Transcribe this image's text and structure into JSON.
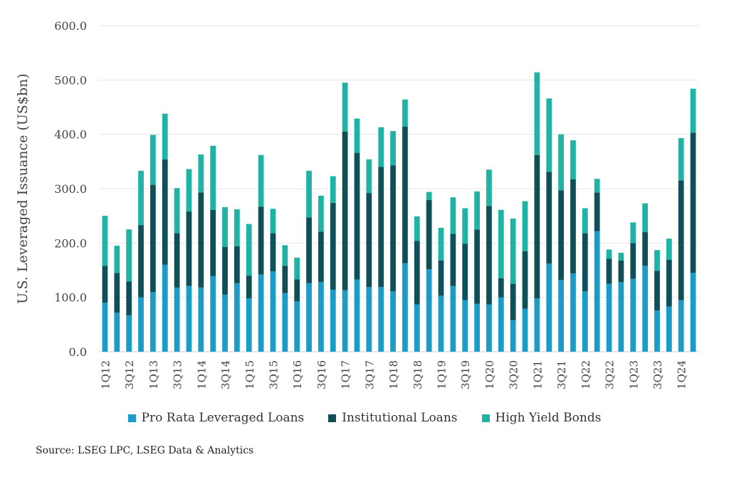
{
  "chart_data": {
    "type": "bar",
    "stacked": true,
    "ylabel": "U.S. Leveraged Issuance (US$bn)",
    "ylim": [
      0,
      600
    ],
    "yticks": [
      "0.0",
      "100.0",
      "200.0",
      "300.0",
      "400.0",
      "500.0",
      "600.0"
    ],
    "grid": true,
    "legend_position": "bottom",
    "categories": [
      "1Q12",
      "2Q12",
      "3Q12",
      "4Q12",
      "1Q13",
      "2Q13",
      "3Q13",
      "4Q13",
      "1Q14",
      "2Q14",
      "3Q14",
      "4Q14",
      "1Q15",
      "2Q15",
      "3Q15",
      "4Q15",
      "1Q16",
      "2Q16",
      "3Q16",
      "4Q16",
      "1Q17",
      "2Q17",
      "3Q17",
      "4Q17",
      "1Q18",
      "2Q18",
      "3Q18",
      "4Q18",
      "1Q19",
      "2Q19",
      "3Q19",
      "4Q19",
      "1Q20",
      "2Q20",
      "3Q20",
      "4Q20",
      "1Q21",
      "2Q21",
      "3Q21",
      "4Q21",
      "1Q22",
      "2Q22",
      "3Q22",
      "4Q22",
      "1Q23",
      "2Q23",
      "3Q23",
      "4Q23",
      "1Q24",
      "2Q24"
    ],
    "visible_tick_labels": [
      "1Q12",
      "3Q12",
      "1Q13",
      "3Q13",
      "1Q14",
      "3Q14",
      "1Q15",
      "3Q15",
      "1Q16",
      "3Q16",
      "1Q17",
      "3Q17",
      "1Q18",
      "3Q18",
      "1Q19",
      "3Q19",
      "1Q20",
      "3Q20",
      "1Q21",
      "3Q21",
      "1Q22",
      "3Q22",
      "1Q23",
      "3Q23",
      "1Q24"
    ],
    "series": [
      {
        "name": "Pro Rata Leveraged Loans",
        "color": "#1a9bc8",
        "values": [
          90,
          72,
          67,
          100,
          110,
          160,
          118,
          121,
          118,
          139,
          105,
          126,
          98,
          142,
          148,
          108,
          93,
          126,
          128,
          114,
          113,
          133,
          119,
          119,
          111,
          163,
          87,
          152,
          103,
          121,
          95,
          88,
          87,
          100,
          58,
          79,
          98,
          162,
          132,
          144,
          111,
          222,
          125,
          128,
          134,
          158,
          76,
          83,
          95,
          145
        ]
      },
      {
        "name": "Institutional Loans",
        "color": "#0f4f57",
        "values": [
          68,
          73,
          62,
          133,
          197,
          194,
          100,
          137,
          175,
          122,
          88,
          68,
          42,
          125,
          70,
          50,
          40,
          121,
          93,
          160,
          292,
          233,
          173,
          221,
          232,
          251,
          117,
          127,
          65,
          96,
          104,
          137,
          181,
          35,
          67,
          106,
          264,
          169,
          165,
          173,
          107,
          71,
          46,
          40,
          66,
          62,
          73,
          86,
          220,
          258
        ]
      },
      {
        "name": "High Yield Bonds",
        "color": "#1fb3a3",
        "values": [
          92,
          50,
          96,
          100,
          92,
          84,
          83,
          78,
          70,
          118,
          73,
          68,
          95,
          95,
          45,
          38,
          40,
          86,
          66,
          49,
          90,
          63,
          62,
          73,
          63,
          50,
          45,
          15,
          60,
          67,
          65,
          70,
          67,
          126,
          120,
          92,
          152,
          135,
          103,
          72,
          46,
          25,
          17,
          14,
          38,
          53,
          38,
          39,
          78,
          81
        ]
      }
    ]
  },
  "legend": {
    "items": [
      {
        "label": "Pro Rata Leveraged Loans",
        "color": "#1a9bc8"
      },
      {
        "label": "Institutional Loans",
        "color": "#0f4f57"
      },
      {
        "label": "High Yield Bonds",
        "color": "#1fb3a3"
      }
    ]
  },
  "source_text": "Source:  LSEG LPC, LSEG Data & Analytics"
}
